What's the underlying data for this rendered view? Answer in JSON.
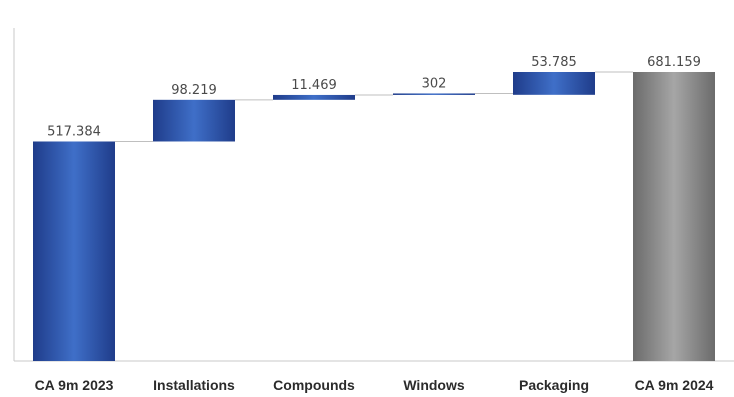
{
  "chart_data": {
    "type": "waterfall",
    "categories": [
      "CA 9m 2023",
      "Installations",
      "Compounds",
      "Windows",
      "Packaging",
      "CA 9m 2024"
    ],
    "values": [
      517384,
      98219,
      11469,
      302,
      53785,
      681159
    ],
    "value_labels": [
      "517.384",
      "98.219",
      "11.469",
      "302",
      "53.785",
      "681.159"
    ],
    "bar_kinds": [
      "total",
      "increase",
      "increase",
      "increase",
      "increase",
      "total"
    ],
    "ylim": [
      0,
      700000
    ],
    "grid": false,
    "legend": "none",
    "colors": {
      "increase_dark": "#1f3c8a",
      "increase_light": "#3f6fc8",
      "total_dark": "#6b6b6b",
      "total_light": "#a6a6a6",
      "connector": "#bfbfbf",
      "axis": "#c8c8c8"
    }
  }
}
